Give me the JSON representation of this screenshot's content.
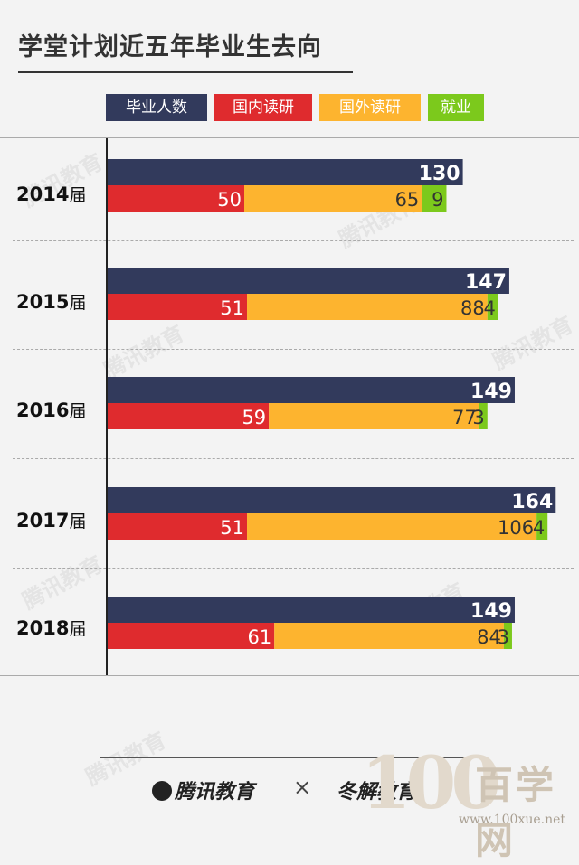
{
  "header": {
    "title": "学堂计划近五年毕业生去向"
  },
  "chart_data": {
    "type": "bar",
    "title": "学堂计划近五年毕业生去向",
    "categories": [
      "2014届",
      "2015届",
      "2016届",
      "2017届",
      "2018届"
    ],
    "category_year": [
      "2014",
      "2015",
      "2016",
      "2017",
      "2018"
    ],
    "category_suffix": "届",
    "series": [
      {
        "name": "毕业人数",
        "values": [
          130,
          147,
          149,
          164,
          149
        ],
        "color": "#323a5c"
      },
      {
        "name": "国内读研",
        "values": [
          50,
          51,
          59,
          51,
          61
        ],
        "color": "#df2b2e"
      },
      {
        "name": "国外读研",
        "values": [
          65,
          88,
          77,
          106,
          84
        ],
        "color": "#fdb42f"
      },
      {
        "name": "就业",
        "values": [
          9,
          4,
          3,
          4,
          3
        ],
        "color": "#7cc91c"
      }
    ],
    "stacked_series": [
      "国内读研",
      "国外读研",
      "就业"
    ],
    "orientation": "horizontal",
    "legend_position": "top",
    "xlim": [
      0,
      164
    ],
    "grid": false
  },
  "footer": {
    "brand_left": "腾讯教育",
    "times": "×",
    "brand_right": "冬解教育"
  },
  "watermark": {
    "text": "腾讯教育",
    "corner_number": "100",
    "corner_name": "百学网",
    "corner_url": "www.100xue.net"
  }
}
